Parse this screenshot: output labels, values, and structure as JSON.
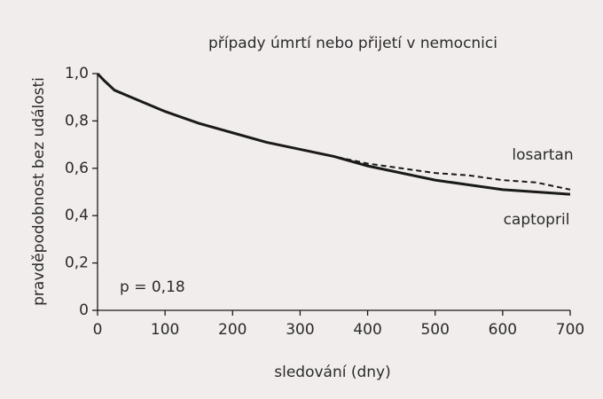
{
  "chart_data": {
    "type": "line",
    "title": "případy úmrtí nebo přijetí v nemocnici",
    "x_label": "sledování (dny)",
    "y_label": "pravděpodobnost bez události",
    "annotations": [
      "p = 0,18"
    ],
    "x": [
      0,
      10,
      25,
      50,
      75,
      100,
      150,
      200,
      250,
      300,
      350,
      400,
      450,
      500,
      550,
      600,
      650,
      700
    ],
    "series": [
      {
        "name": "losartan",
        "color": "#1a1a1a",
        "dashed": true,
        "values": [
          1.0,
          0.97,
          0.93,
          0.9,
          0.87,
          0.84,
          0.79,
          0.75,
          0.71,
          0.68,
          0.65,
          0.62,
          0.6,
          0.58,
          0.57,
          0.55,
          0.54,
          0.51
        ]
      },
      {
        "name": "captopril",
        "color": "#1a1a1a",
        "dashed": false,
        "values": [
          1.0,
          0.97,
          0.93,
          0.9,
          0.87,
          0.84,
          0.79,
          0.75,
          0.71,
          0.68,
          0.65,
          0.61,
          0.58,
          0.55,
          0.53,
          0.51,
          0.5,
          0.49
        ]
      }
    ],
    "xlim": [
      0,
      700
    ],
    "xticks": [
      0,
      100,
      200,
      300,
      400,
      500,
      600,
      700
    ],
    "ylim": [
      0,
      1
    ],
    "yticks": [
      0,
      {
        "value": 0.2,
        "label": "0,2"
      },
      {
        "value": 0.4,
        "label": "0,4"
      },
      {
        "value": 0.6,
        "label": "0,6"
      },
      {
        "value": 0.8,
        "label": "0,8"
      },
      {
        "value": 1,
        "label": "1,0"
      }
    ],
    "grid": false
  }
}
